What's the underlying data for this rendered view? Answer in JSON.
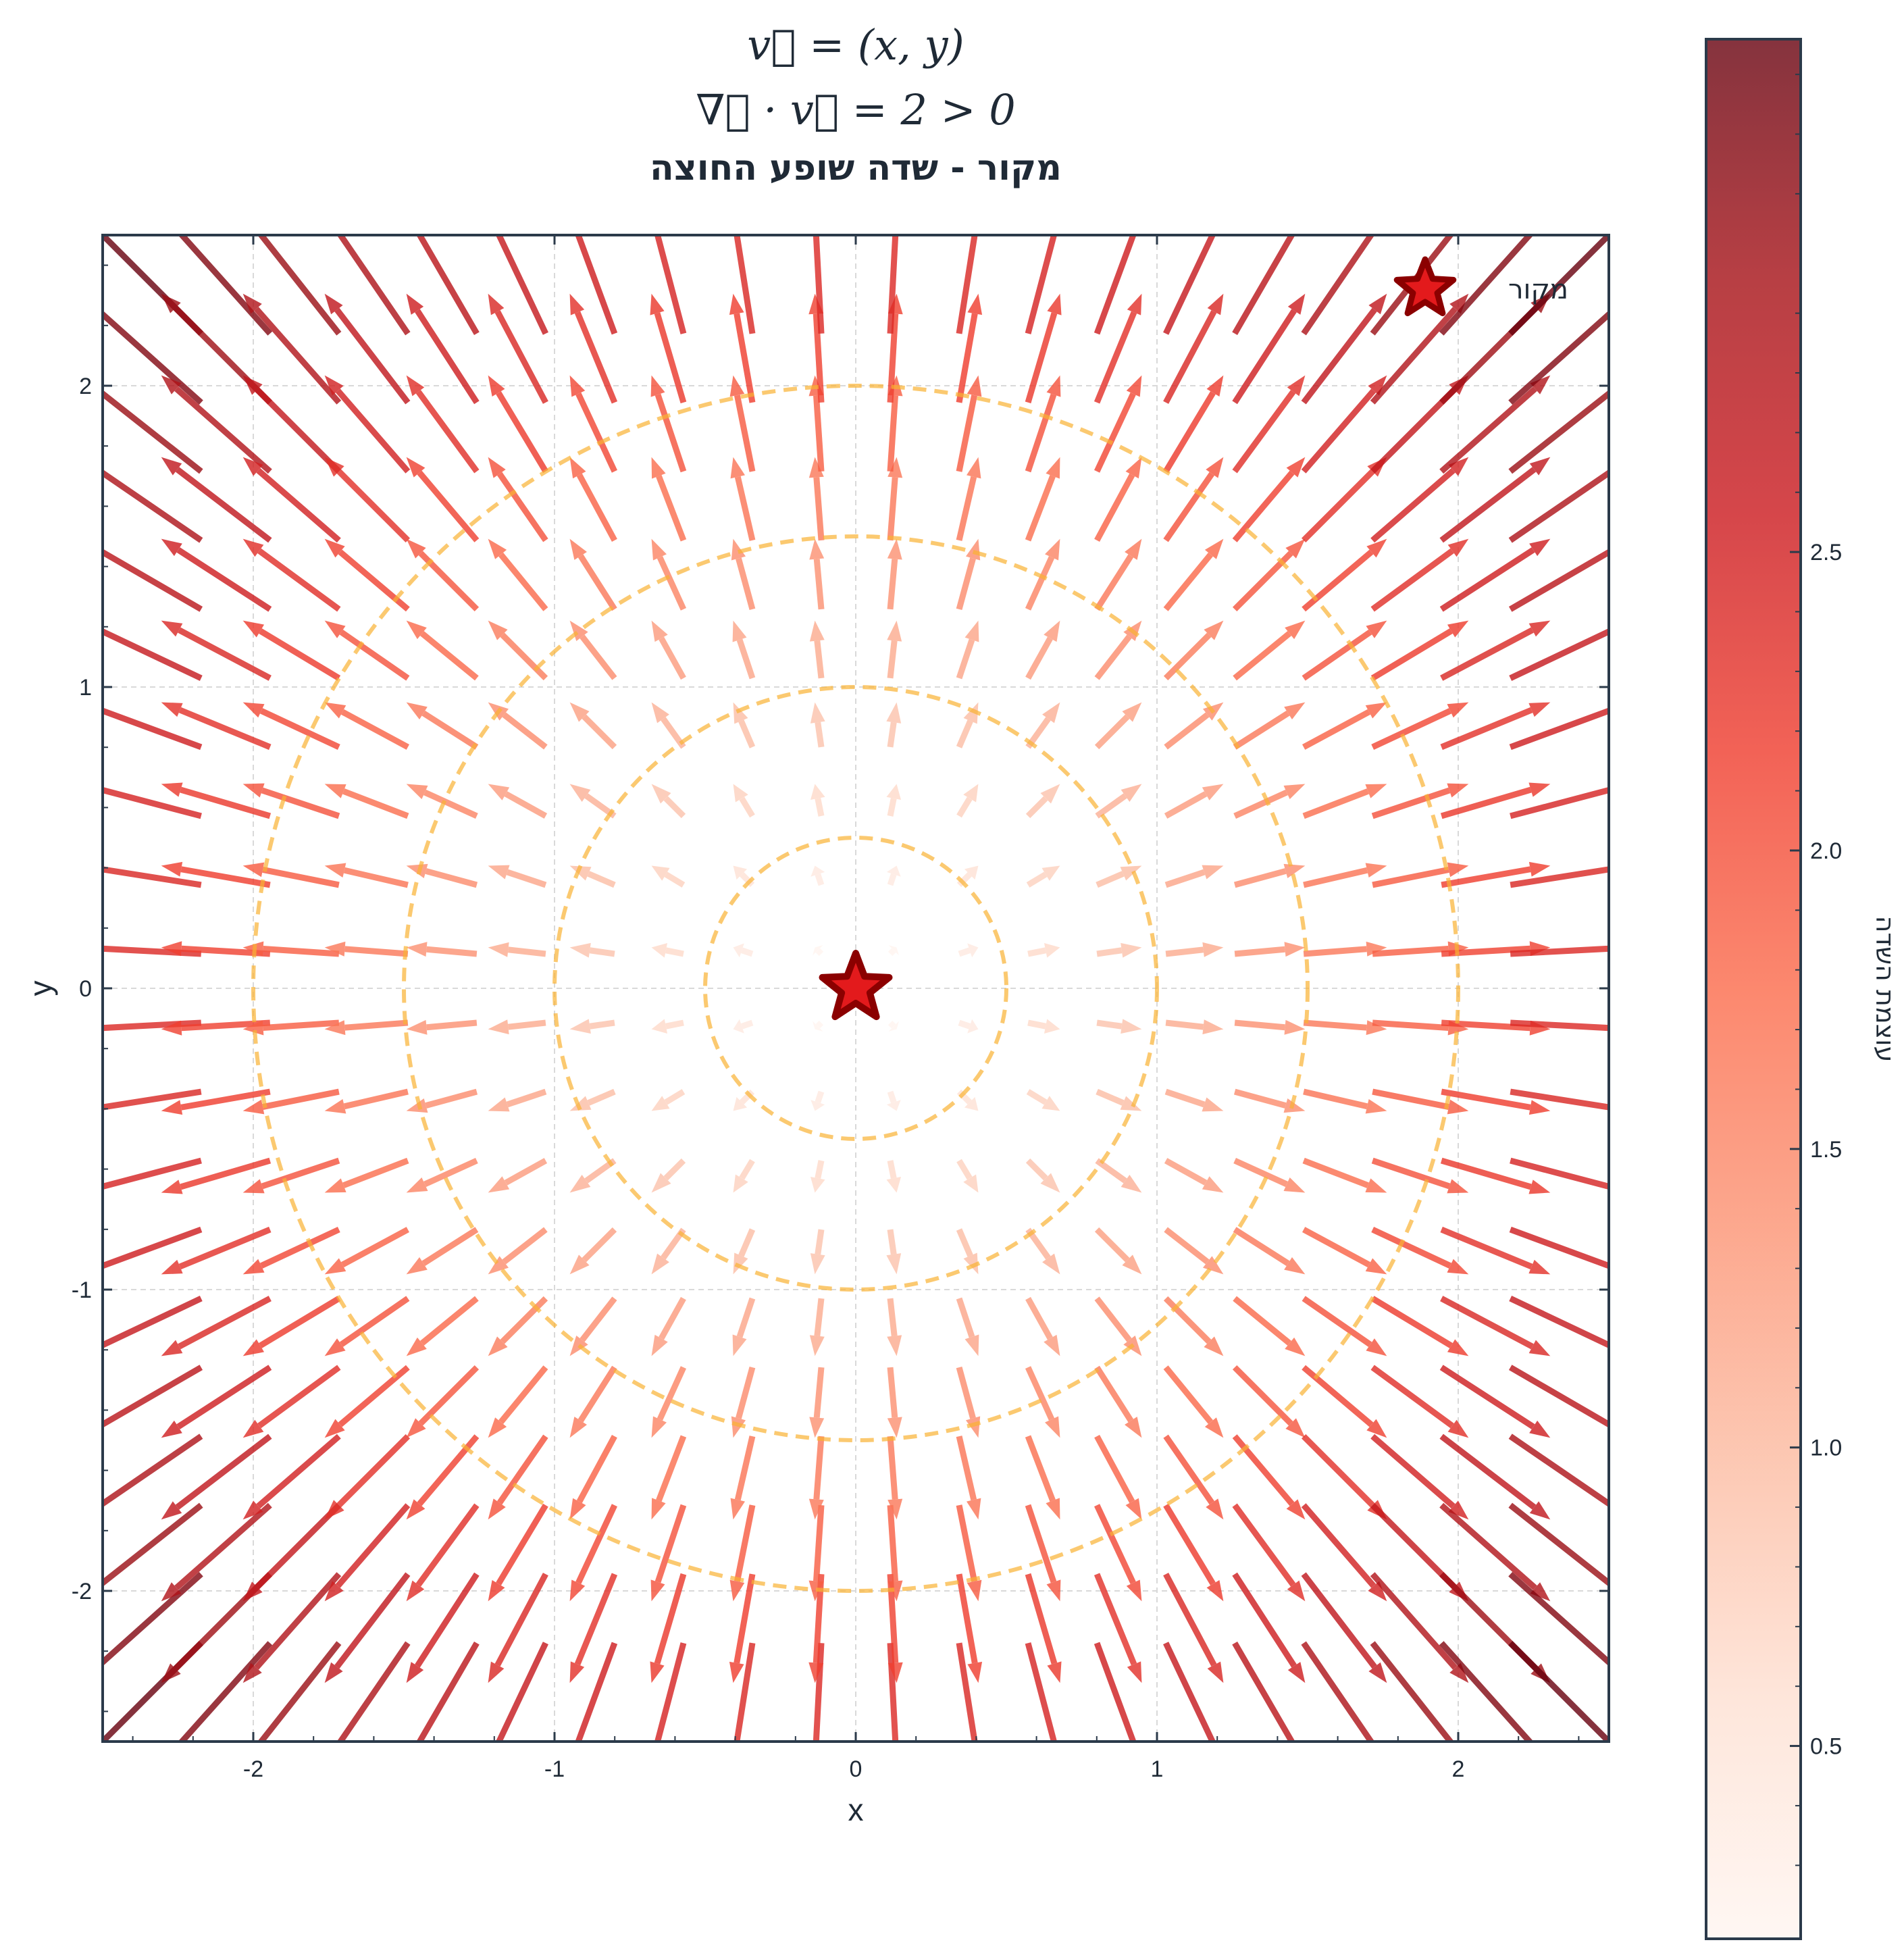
{
  "chart_data": {
    "type": "quiver",
    "title_lines": [
      "v⃗ = (x, y)",
      "∇⃗ · v⃗ = 2 > 0",
      "מקור - שדה שופע החוצה"
    ],
    "xlabel": "x",
    "ylabel": "y",
    "xlim": [
      -2.5,
      2.5
    ],
    "ylim": [
      -2.5,
      2.5
    ],
    "x_ticks": [
      -2,
      -1,
      0,
      1,
      2
    ],
    "y_ticks": [
      -2,
      -1,
      0,
      1,
      2
    ],
    "x_tick_labels": [
      "-2",
      "-1",
      "0",
      "1",
      "2"
    ],
    "y_tick_labels": [
      "-2",
      "-1",
      "0",
      "1",
      "2"
    ],
    "field": {
      "vx": "x",
      "vy": "y",
      "grid_min": -2.375,
      "grid_max": 2.375,
      "grid_n": 20
    },
    "grid": true,
    "colormap": "Reds",
    "circle_radii": [
      0.5,
      1.0,
      1.5,
      2.0
    ],
    "circle_color": "#f9b233",
    "source_point": {
      "x": 0,
      "y": 0,
      "color": "#e31a1c",
      "edge_color": "#8b0000"
    },
    "legend": {
      "label": "מקור",
      "position": "upper right"
    },
    "colorbar": {
      "label": "עוצמת השדה",
      "min": 0.177,
      "max": 3.359,
      "ticks": [
        0.5,
        1.0,
        1.5,
        2.0,
        2.5
      ],
      "tick_labels": [
        "0.5",
        "1.0",
        "1.5",
        "2.0",
        "2.5"
      ]
    },
    "colors": {
      "text": "#1f2a36",
      "axes_edge": "#2b3a4a",
      "grid": "#d9d9d9"
    }
  }
}
